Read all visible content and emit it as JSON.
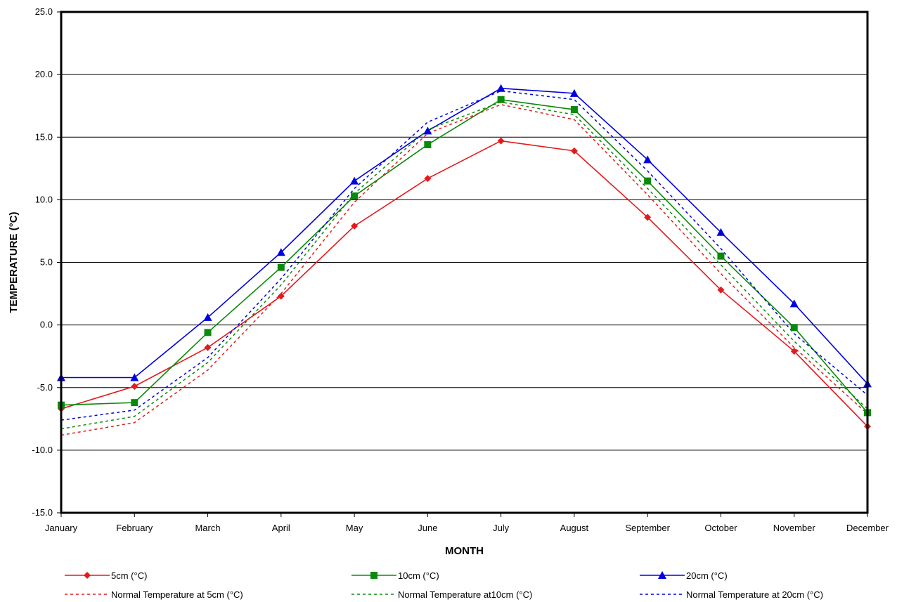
{
  "chart_data": {
    "type": "line",
    "xlabel": "MONTH",
    "ylabel": "TEMPERATURE (°C)",
    "ylim": [
      -15,
      25
    ],
    "yticks": [
      "25.0",
      "20.0",
      "15.0",
      "10.0",
      "5.0",
      "0.0",
      "-5.0",
      "-10.0",
      "-15.0"
    ],
    "ytick_values": [
      25,
      20,
      15,
      10,
      5,
      0,
      -5,
      -10,
      -15
    ],
    "grid": "horizontal",
    "legend_position": "bottom",
    "categories": [
      "January",
      "February",
      "March",
      "April",
      "May",
      "June",
      "July",
      "August",
      "September",
      "October",
      "November",
      "December"
    ],
    "series": [
      {
        "name": "5cm (°C)",
        "color": "#e41a1c",
        "style": "solid",
        "marker": "diamond",
        "values": [
          -6.7,
          -4.9,
          -1.8,
          2.3,
          7.9,
          11.7,
          14.7,
          13.9,
          8.6,
          2.8,
          -2.1,
          -8.1
        ]
      },
      {
        "name": "10cm (°C)",
        "color": "#0a8a0a",
        "style": "solid",
        "marker": "square",
        "values": [
          -6.4,
          -6.2,
          -0.6,
          4.6,
          10.3,
          14.4,
          18.0,
          17.2,
          11.5,
          5.5,
          -0.2,
          -7.0
        ]
      },
      {
        "name": "20cm (°C)",
        "color": "#0000e0",
        "style": "solid",
        "marker": "triangle",
        "values": [
          -4.2,
          -4.2,
          0.6,
          5.8,
          11.5,
          15.5,
          18.9,
          18.5,
          13.2,
          7.4,
          1.7,
          -4.7
        ]
      },
      {
        "name": "Normal Temperature at 5cm (°C)",
        "color": "#e41a1c",
        "style": "dotted",
        "marker": "none",
        "values": [
          -8.8,
          -7.8,
          -3.6,
          2.5,
          9.8,
          15.3,
          17.6,
          16.4,
          10.4,
          4.1,
          -1.8,
          -7.1
        ]
      },
      {
        "name": "Normal Temperature at10cm (°C)",
        "color": "#0a8a0a",
        "style": "dotted",
        "marker": "none",
        "values": [
          -8.3,
          -7.3,
          -3.0,
          3.2,
          10.5,
          15.6,
          17.8,
          16.8,
          10.9,
          4.8,
          -1.3,
          -6.7
        ]
      },
      {
        "name": "Normal Temperature at 20cm (°C)",
        "color": "#0000e0",
        "style": "dotted",
        "marker": "none",
        "values": [
          -7.6,
          -6.8,
          -2.6,
          3.7,
          10.9,
          16.2,
          18.7,
          18.0,
          12.3,
          6.1,
          -0.7,
          -5.6
        ]
      }
    ]
  }
}
